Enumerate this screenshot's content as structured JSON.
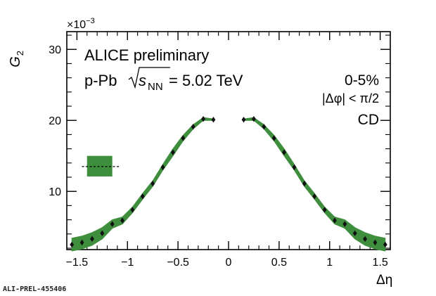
{
  "figure_id": "ALI-PREL-455406",
  "chart_data": {
    "type": "scatter",
    "title": "",
    "xlabel": "Δη",
    "ylabel": "G",
    "ylabel_subscript": "2",
    "y_multiplier": "×10",
    "y_multiplier_exp": "−3",
    "xlim": [
      -1.6,
      1.6
    ],
    "ylim": [
      1.8,
      32.5
    ],
    "x_ticks": [
      -1.5,
      -1,
      -0.5,
      0,
      0.5,
      1,
      1.5
    ],
    "x_tick_labels": [
      "−1.5",
      "−1",
      "−0.5",
      "0",
      "0.5",
      "1",
      "1.5"
    ],
    "y_ticks": [
      10,
      20,
      30
    ],
    "y_tick_labels": [
      "10",
      "20",
      "30"
    ],
    "annotations": {
      "line1": "ALICE preliminary",
      "line2_prefix": "p-Pb ",
      "sqrt_var": "s",
      "sqrt_sub": "NN",
      "line2_suffix": " = 5.02 TeV",
      "centrality": "0-5%",
      "dphi_cut": "|Δφ| < π/2",
      "type_label": "CD"
    },
    "colors": {
      "band": "#3e8e3e",
      "marker": "#111111",
      "axis": "#000000"
    },
    "series": [
      {
        "x": [
          -1.55,
          -1.45,
          -1.35,
          -1.25,
          -1.15,
          -1.05,
          -0.95,
          -0.85,
          -0.75,
          -0.65,
          -0.55,
          -0.45,
          -0.35,
          -0.25,
          -0.15,
          0.15,
          0.25,
          0.35,
          0.45,
          0.55,
          0.65,
          0.75,
          0.85,
          0.95,
          1.05,
          1.15,
          1.25,
          1.35,
          1.45,
          1.55
        ],
        "y": [
          2.5,
          2.8,
          3.3,
          4.1,
          5.4,
          5.9,
          7.4,
          9.3,
          11.1,
          13.4,
          15.5,
          17.5,
          19.1,
          20.2,
          20.1,
          20.1,
          20.2,
          19.1,
          17.5,
          15.5,
          13.4,
          11.1,
          9.3,
          7.4,
          5.9,
          5.4,
          4.1,
          3.3,
          2.8,
          2.5
        ],
        "sys_err": [
          0.9,
          0.9,
          0.9,
          0.8,
          0.6,
          0.5,
          0.4,
          0.4,
          0.4,
          0.4,
          0.5,
          0.4,
          0.3,
          0.2,
          0.1,
          0.1,
          0.2,
          0.3,
          0.4,
          0.5,
          0.4,
          0.4,
          0.4,
          0.4,
          0.5,
          0.6,
          0.8,
          0.9,
          0.9,
          0.9
        ]
      }
    ],
    "scale_uncertainty": {
      "x_range": [
        -1.4,
        -1.15
      ],
      "y_low": 12.1,
      "y_high": 15.0,
      "y_center": 13.5,
      "line_x_range": [
        -1.45,
        -1.08
      ]
    }
  }
}
